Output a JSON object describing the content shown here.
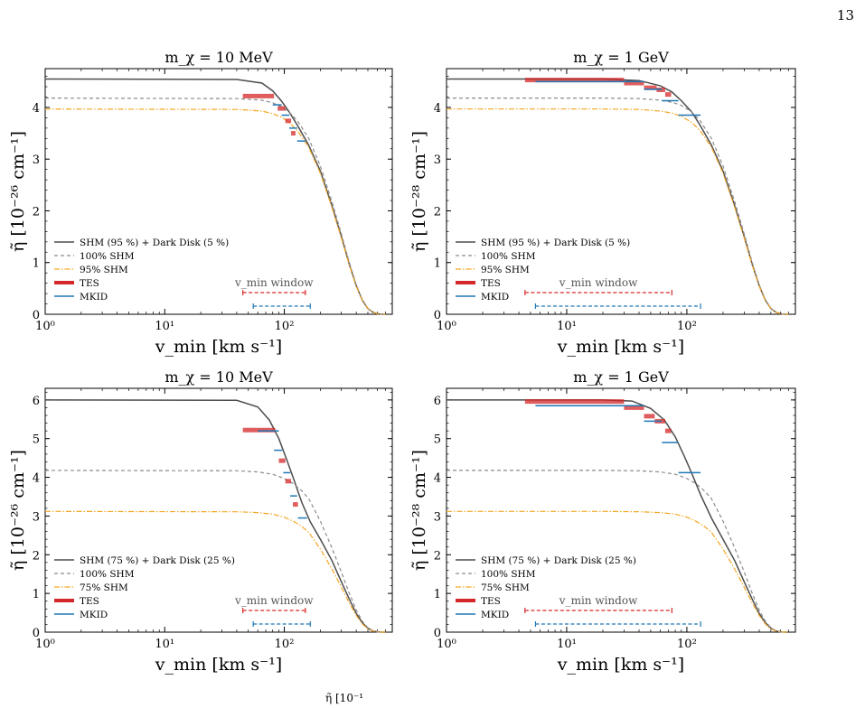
{
  "page_number": "13",
  "caption_fragment": "η̃ [10⁻¹",
  "colors": {
    "combined": "#4d4d4d",
    "shm100": "#8c8c8c",
    "shm_partial": "#f5a623",
    "tes": "#d62728",
    "mkid": "#1f77b4"
  },
  "chart_data": [
    {
      "type": "line",
      "title": "m_χ = 10 MeV",
      "xlabel": "v_min [km s⁻¹]",
      "ylabel": "η̃ [10⁻²⁶ cm⁻¹]",
      "xscale": "log",
      "xlim": [
        1,
        800
      ],
      "ylim": [
        0,
        4.75
      ],
      "yticks": [
        0,
        1,
        2,
        3,
        4
      ],
      "xticks": [
        "10⁰",
        "10¹",
        "10²"
      ],
      "series": [
        {
          "name": "SHM (95 %) + Dark Disk (5 %)",
          "style": "solid",
          "color": "#4d4d4d",
          "x": [
            1,
            40,
            65,
            80,
            95,
            110,
            130,
            160,
            200,
            250,
            300,
            350,
            400,
            450,
            500,
            550,
            600,
            650,
            700
          ],
          "y": [
            4.55,
            4.54,
            4.47,
            4.32,
            4.12,
            3.91,
            3.64,
            3.27,
            2.77,
            2.1,
            1.5,
            0.96,
            0.55,
            0.27,
            0.11,
            0.04,
            0.01,
            0.0,
            0.0
          ]
        },
        {
          "name": "100% SHM",
          "style": "dashed",
          "color": "#8c8c8c",
          "x": [
            1,
            40,
            65,
            80,
            95,
            110,
            130,
            160,
            200,
            250,
            300,
            350,
            400,
            450,
            500,
            550,
            600,
            650,
            700
          ],
          "y": [
            4.18,
            4.17,
            4.14,
            4.09,
            4.01,
            3.91,
            3.73,
            3.4,
            2.87,
            2.18,
            1.55,
            1.0,
            0.57,
            0.28,
            0.11,
            0.04,
            0.01,
            0.0,
            0.0
          ]
        },
        {
          "name": "95% SHM",
          "style": "dashdot",
          "color": "#f5a623",
          "x": [
            1,
            40,
            65,
            80,
            95,
            110,
            130,
            160,
            200,
            250,
            300,
            350,
            400,
            450,
            500,
            550,
            600,
            650,
            700
          ],
          "y": [
            3.97,
            3.96,
            3.93,
            3.88,
            3.81,
            3.71,
            3.54,
            3.23,
            2.73,
            2.07,
            1.47,
            0.95,
            0.54,
            0.27,
            0.11,
            0.04,
            0.01,
            0.0,
            0.0
          ]
        }
      ],
      "tes": [
        [
          45,
          82,
          4.22
        ],
        [
          88,
          102,
          3.98
        ],
        [
          102,
          114,
          3.74
        ],
        [
          114,
          124,
          3.5
        ]
      ],
      "mkid": [
        [
          80,
          95,
          4.05
        ],
        [
          95,
          110,
          3.85
        ],
        [
          110,
          128,
          3.6
        ],
        [
          128,
          150,
          3.35
        ]
      ],
      "legend": [
        "SHM (95 %) + Dark Disk (5 %)",
        "100% SHM",
        "95% SHM",
        "TES",
        "MKID"
      ],
      "window_label": "v_min window",
      "windows": {
        "tes": [
          45,
          150
        ],
        "mkid": [
          55,
          165
        ]
      }
    },
    {
      "type": "line",
      "title": "m_χ = 1 GeV",
      "xlabel": "v_min [km s⁻¹]",
      "ylabel": "η̃ [10⁻²⁸ cm⁻¹]",
      "xscale": "log",
      "xlim": [
        1,
        800
      ],
      "ylim": [
        0,
        4.75
      ],
      "yticks": [
        0,
        1,
        2,
        3,
        4
      ],
      "xticks": [
        "10⁰",
        "10¹",
        "10²"
      ],
      "series": [
        {
          "name": "SHM (95 %) + Dark Disk (5 %)",
          "style": "solid",
          "color": "#4d4d4d",
          "x": [
            1,
            20,
            40,
            60,
            75,
            90,
            110,
            130,
            160,
            200,
            250,
            300,
            350,
            400,
            450,
            500,
            550,
            600,
            650,
            700
          ],
          "y": [
            4.55,
            4.55,
            4.52,
            4.42,
            4.3,
            4.13,
            3.91,
            3.64,
            3.27,
            2.77,
            2.1,
            1.5,
            0.96,
            0.55,
            0.27,
            0.11,
            0.04,
            0.01,
            0.0,
            0.0
          ]
        },
        {
          "name": "100% SHM",
          "style": "dashed",
          "color": "#8c8c8c",
          "x": [
            1,
            20,
            40,
            60,
            75,
            90,
            110,
            130,
            160,
            200,
            250,
            300,
            350,
            400,
            450,
            500,
            550,
            600,
            650,
            700
          ],
          "y": [
            4.18,
            4.18,
            4.17,
            4.14,
            4.1,
            4.04,
            3.91,
            3.73,
            3.4,
            2.87,
            2.18,
            1.55,
            1.0,
            0.57,
            0.28,
            0.11,
            0.04,
            0.01,
            0.0,
            0.0
          ]
        },
        {
          "name": "95% SHM",
          "style": "dashdot",
          "color": "#f5a623",
          "x": [
            1,
            20,
            40,
            60,
            75,
            90,
            110,
            130,
            160,
            200,
            250,
            300,
            350,
            400,
            450,
            500,
            550,
            600,
            650,
            700
          ],
          "y": [
            3.97,
            3.97,
            3.96,
            3.93,
            3.89,
            3.83,
            3.71,
            3.54,
            3.23,
            2.73,
            2.07,
            1.47,
            0.95,
            0.54,
            0.27,
            0.11,
            0.04,
            0.01,
            0.0,
            0.0
          ]
        }
      ],
      "tes": [
        [
          4.5,
          30,
          4.53
        ],
        [
          30,
          44,
          4.47
        ],
        [
          44,
          56,
          4.38
        ],
        [
          56,
          66,
          4.34
        ],
        [
          66,
          74,
          4.25
        ]
      ],
      "mkid": [
        [
          5.5,
          44,
          4.5
        ],
        [
          44,
          62,
          4.35
        ],
        [
          62,
          85,
          4.13
        ],
        [
          85,
          130,
          3.85
        ]
      ],
      "legend": [
        "SHM (95 %) + Dark Disk (5 %)",
        "100% SHM",
        "95% SHM",
        "TES",
        "MKID"
      ],
      "window_label": "v_min window",
      "windows": {
        "tes": [
          4.5,
          75
        ],
        "mkid": [
          5.5,
          130
        ]
      }
    },
    {
      "type": "line",
      "title": "m_χ = 10 MeV",
      "xlabel": "v_min [km s⁻¹]",
      "ylabel": "η̃ [10⁻²⁶ cm⁻¹]",
      "xscale": "log",
      "xlim": [
        1,
        800
      ],
      "ylim": [
        0,
        6.3
      ],
      "yticks": [
        0,
        1,
        2,
        3,
        4,
        5,
        6
      ],
      "xticks": [
        "10⁰",
        "10¹",
        "10²"
      ],
      "series": [
        {
          "name": "SHM (75 %) + Dark Disk (25 %)",
          "style": "solid",
          "color": "#4d4d4d",
          "x": [
            1,
            40,
            60,
            75,
            90,
            105,
            120,
            140,
            165,
            200,
            250,
            300,
            350,
            400,
            450,
            500,
            550,
            600,
            650,
            700
          ],
          "y": [
            6.0,
            5.99,
            5.82,
            5.48,
            5.0,
            4.45,
            3.95,
            3.35,
            2.85,
            2.4,
            1.85,
            1.3,
            0.85,
            0.48,
            0.24,
            0.1,
            0.03,
            0.01,
            0.0,
            0.0
          ]
        },
        {
          "name": "100% SHM",
          "style": "dashed",
          "color": "#8c8c8c",
          "x": [
            1,
            40,
            60,
            80,
            100,
            120,
            140,
            160,
            200,
            250,
            300,
            350,
            400,
            450,
            500,
            550,
            600,
            650,
            700
          ],
          "y": [
            4.18,
            4.17,
            4.14,
            4.08,
            3.97,
            3.83,
            3.65,
            3.45,
            2.87,
            2.18,
            1.55,
            1.0,
            0.57,
            0.28,
            0.11,
            0.04,
            0.01,
            0.0,
            0.0
          ]
        },
        {
          "name": "75% SHM",
          "style": "dashdot",
          "color": "#f5a623",
          "x": [
            1,
            40,
            60,
            80,
            100,
            120,
            140,
            160,
            200,
            250,
            300,
            350,
            400,
            450,
            500,
            550,
            600,
            650,
            700
          ],
          "y": [
            3.12,
            3.11,
            3.09,
            3.05,
            2.97,
            2.86,
            2.73,
            2.58,
            2.15,
            1.63,
            1.16,
            0.75,
            0.43,
            0.21,
            0.08,
            0.03,
            0.01,
            0.0,
            0.0
          ]
        }
      ],
      "tes": [
        [
          45,
          84,
          5.22
        ],
        [
          90,
          102,
          4.43
        ],
        [
          102,
          114,
          3.9
        ],
        [
          118,
          130,
          3.3
        ]
      ],
      "mkid": [
        [
          60,
          90,
          5.2
        ],
        [
          82,
          96,
          4.7
        ],
        [
          98,
          112,
          4.12
        ],
        [
          112,
          128,
          3.52
        ],
        [
          130,
          155,
          2.95
        ]
      ],
      "legend": [
        "SHM (75 %) + Dark Disk (25 %)",
        "100% SHM",
        "75% SHM",
        "TES",
        "MKID"
      ],
      "window_label": "v_min window",
      "windows": {
        "tes": [
          45,
          150
        ],
        "mkid": [
          55,
          165
        ]
      }
    },
    {
      "type": "line",
      "title": "m_χ = 1 GeV",
      "xlabel": "v_min [km s⁻¹]",
      "ylabel": "η̃ [10⁻²⁸ cm⁻¹]",
      "xscale": "log",
      "xlim": [
        1,
        800
      ],
      "ylim": [
        0,
        6.3
      ],
      "yticks": [
        0,
        1,
        2,
        3,
        4,
        5,
        6
      ],
      "xticks": [
        "10⁰",
        "10¹",
        "10²"
      ],
      "series": [
        {
          "name": "SHM (75 %) + Dark Disk (25 %)",
          "style": "solid",
          "color": "#4d4d4d",
          "x": [
            1,
            20,
            35,
            50,
            65,
            80,
            95,
            110,
            130,
            160,
            200,
            250,
            300,
            350,
            400,
            450,
            500,
            550,
            600,
            650,
            700
          ],
          "y": [
            6.0,
            6.0,
            5.97,
            5.78,
            5.48,
            5.05,
            4.55,
            4.1,
            3.55,
            2.95,
            2.4,
            1.85,
            1.3,
            0.85,
            0.48,
            0.24,
            0.1,
            0.03,
            0.01,
            0.0,
            0.0
          ]
        },
        {
          "name": "100% SHM",
          "style": "dashed",
          "color": "#8c8c8c",
          "x": [
            1,
            20,
            40,
            60,
            80,
            100,
            120,
            140,
            160,
            200,
            250,
            300,
            350,
            400,
            450,
            500,
            550,
            600,
            650,
            700
          ],
          "y": [
            4.18,
            4.18,
            4.17,
            4.14,
            4.08,
            3.97,
            3.83,
            3.65,
            3.45,
            2.87,
            2.18,
            1.55,
            1.0,
            0.57,
            0.28,
            0.11,
            0.04,
            0.01,
            0.0,
            0.0
          ]
        },
        {
          "name": "75% SHM",
          "style": "dashdot",
          "color": "#f5a623",
          "x": [
            1,
            20,
            40,
            60,
            80,
            100,
            120,
            140,
            160,
            200,
            250,
            300,
            350,
            400,
            450,
            500,
            550,
            600,
            650,
            700
          ],
          "y": [
            3.12,
            3.12,
            3.11,
            3.09,
            3.05,
            2.97,
            2.86,
            2.73,
            2.58,
            2.15,
            1.63,
            1.16,
            0.75,
            0.43,
            0.21,
            0.08,
            0.03,
            0.01,
            0.0,
            0.0
          ]
        }
      ],
      "tes": [
        [
          4.5,
          30,
          5.96
        ],
        [
          30,
          44,
          5.8
        ],
        [
          44,
          54,
          5.58
        ],
        [
          54,
          66,
          5.45
        ],
        [
          66,
          74,
          5.2
        ]
      ],
      "mkid": [
        [
          5.5,
          44,
          5.85
        ],
        [
          44,
          62,
          5.45
        ],
        [
          62,
          85,
          4.9
        ],
        [
          85,
          130,
          4.12
        ]
      ],
      "legend": [
        "SHM (75 %) + Dark Disk (25 %)",
        "100% SHM",
        "75% SHM",
        "TES",
        "MKID"
      ],
      "window_label": "v_min window",
      "windows": {
        "tes": [
          4.5,
          75
        ],
        "mkid": [
          5.5,
          130
        ]
      }
    }
  ]
}
